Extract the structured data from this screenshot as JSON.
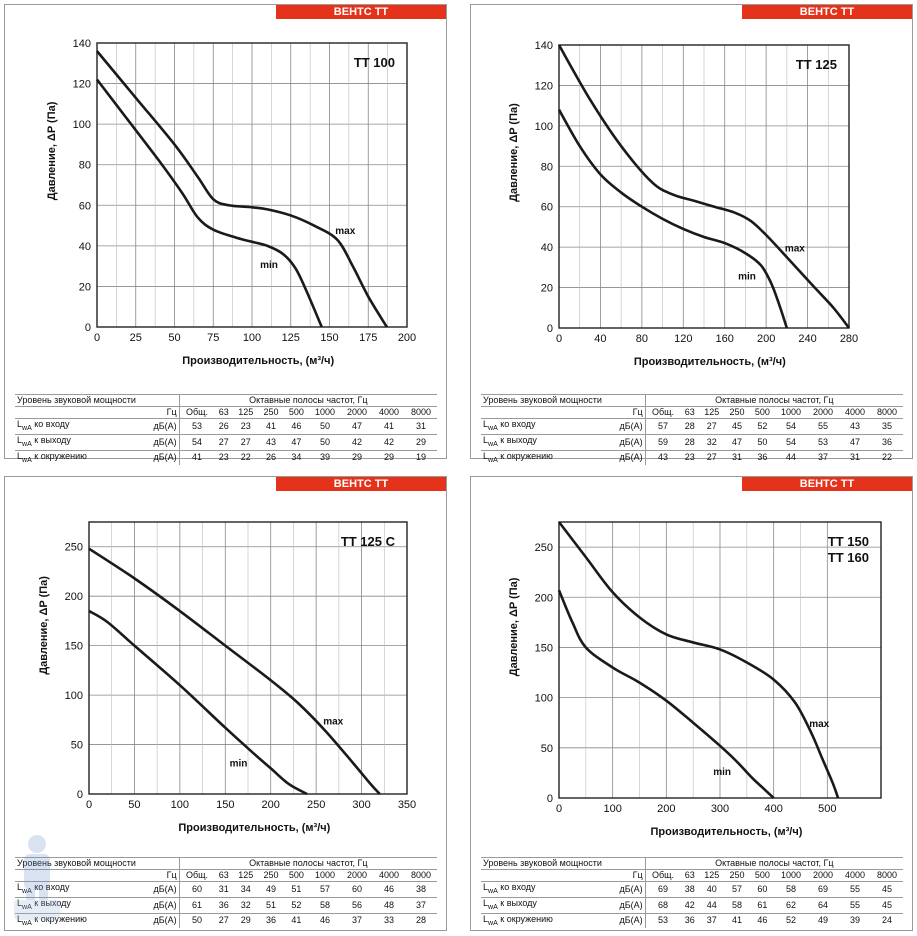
{
  "panels": [
    {
      "brand": "ВЕНТС ТТ",
      "chart_data": {
        "type": "line",
        "title": "ТТ 100",
        "xlabel": "Производительность, (м³/ч)",
        "ylabel": "Давление, ΔP (Па)",
        "xlim": [
          0,
          200
        ],
        "ylim": [
          0,
          140
        ],
        "xticks": [
          0,
          25,
          50,
          75,
          100,
          125,
          150,
          175,
          200
        ],
        "yticks": [
          0,
          20,
          40,
          60,
          80,
          100,
          120,
          140
        ],
        "grid": true,
        "series": [
          {
            "name": "max",
            "x": [
              0,
              25,
              50,
              65,
              75,
              85,
              100,
              110,
              125,
              140,
              155,
              165,
              175,
              187
            ],
            "y": [
              136,
              113,
              90,
              74,
              63,
              60,
              59,
              58,
              55,
              50,
              43,
              30,
              15,
              0
            ]
          },
          {
            "name": "min",
            "x": [
              0,
              20,
              40,
              55,
              65,
              75,
              90,
              100,
              110,
              120,
              128,
              135,
              145
            ],
            "y": [
              122,
              102,
              82,
              66,
              54,
              48,
              44,
              42,
              40,
              36,
              29,
              18,
              0
            ]
          }
        ]
      },
      "table": {
        "header_left": "Уровень звуковой мощности",
        "header_right": "Октавные полосы частот, Гц",
        "unit_header": "Гц",
        "columns": [
          "Общ.",
          "63",
          "125",
          "250",
          "500",
          "1000",
          "2000",
          "4000",
          "8000"
        ],
        "rows": [
          {
            "label": "LwA ко входу",
            "unit": "дБ(А)",
            "values": [
              "53",
              "26",
              "23",
              "41",
              "46",
              "50",
              "47",
              "41",
              "31"
            ]
          },
          {
            "label": "LwA к выходу",
            "unit": "дБ(А)",
            "values": [
              "54",
              "27",
              "27",
              "43",
              "47",
              "50",
              "42",
              "42",
              "29"
            ]
          },
          {
            "label": "LwA к окружению",
            "unit": "дБ(А)",
            "values": [
              "41",
              "23",
              "22",
              "26",
              "34",
              "39",
              "29",
              "29",
              "19"
            ]
          }
        ]
      }
    },
    {
      "brand": "ВЕНТС ТТ",
      "chart_data": {
        "type": "line",
        "title": "ТТ 125",
        "xlabel": "Производительность, (м³/ч)",
        "ylabel": "Давление, ΔP (Па)",
        "xlim": [
          0,
          280
        ],
        "ylim": [
          0,
          140
        ],
        "xticks": [
          0,
          40,
          80,
          120,
          160,
          200,
          240,
          280
        ],
        "yticks": [
          0,
          20,
          40,
          60,
          80,
          100,
          120,
          140
        ],
        "grid": true,
        "series": [
          {
            "name": "max",
            "x": [
              0,
              30,
              60,
              90,
              110,
              130,
              150,
              170,
              185,
              200,
              220,
              245,
              265,
              280
            ],
            "y": [
              140,
              113,
              90,
              72,
              66,
              63,
              60,
              57,
              53,
              46,
              35,
              21,
              10,
              0
            ]
          },
          {
            "name": "min",
            "x": [
              0,
              20,
              40,
              60,
              80,
              100,
              120,
              140,
              160,
              180,
              195,
              205,
              213,
              220
            ],
            "y": [
              108,
              90,
              76,
              67,
              60,
              54,
              49,
              45,
              42,
              37,
              31,
              22,
              11,
              0
            ]
          }
        ]
      },
      "table": {
        "header_left": "Уровень звуковой мощности",
        "header_right": "Октавные полосы частот, Гц",
        "unit_header": "Гц",
        "columns": [
          "Общ.",
          "63",
          "125",
          "250",
          "500",
          "1000",
          "2000",
          "4000",
          "8000"
        ],
        "rows": [
          {
            "label": "LwA ко входу",
            "unit": "дБ(А)",
            "values": [
              "57",
              "28",
              "27",
              "45",
              "52",
              "54",
              "55",
              "43",
              "35"
            ]
          },
          {
            "label": "LwA к выходу",
            "unit": "дБ(А)",
            "values": [
              "59",
              "28",
              "32",
              "47",
              "50",
              "54",
              "53",
              "47",
              "36"
            ]
          },
          {
            "label": "LwA к окружению",
            "unit": "дБ(А)",
            "values": [
              "43",
              "23",
              "27",
              "31",
              "36",
              "44",
              "37",
              "31",
              "22"
            ]
          }
        ]
      }
    },
    {
      "brand": "ВЕНТС ТТ",
      "chart_data": {
        "type": "line",
        "title": "ТТ 125 С",
        "xlabel": "Производительность, (м³/ч)",
        "ylabel": "Давление, ΔP (Па)",
        "xlim": [
          0,
          350
        ],
        "ylim": [
          0,
          275
        ],
        "xticks": [
          0,
          50,
          100,
          150,
          200,
          250,
          300,
          350
        ],
        "yticks": [
          0,
          50,
          100,
          150,
          200,
          250
        ],
        "grid": true,
        "series": [
          {
            "name": "max",
            "x": [
              0,
              50,
              100,
              150,
              200,
              230,
              260,
              290,
              310,
              320
            ],
            "y": [
              248,
              218,
              185,
              150,
              115,
              92,
              64,
              32,
              10,
              0
            ]
          },
          {
            "name": "min",
            "x": [
              0,
              20,
              50,
              100,
              150,
              180,
              200,
              220,
              240
            ],
            "y": [
              185,
              174,
              150,
              110,
              67,
              42,
              26,
              10,
              0
            ]
          }
        ]
      },
      "table": {
        "header_left": "Уровень звуковой мощности",
        "header_right": "Октавные полосы частот, Гц",
        "unit_header": "Гц",
        "columns": [
          "Общ.",
          "63",
          "125",
          "250",
          "500",
          "1000",
          "2000",
          "4000",
          "8000"
        ],
        "rows": [
          {
            "label": "LwA ко входу",
            "unit": "дБ(А)",
            "values": [
              "60",
              "31",
              "34",
              "49",
              "51",
              "57",
              "60",
              "46",
              "38"
            ]
          },
          {
            "label": "LwA к выходу",
            "unit": "дБ(А)",
            "values": [
              "61",
              "36",
              "32",
              "51",
              "52",
              "58",
              "56",
              "48",
              "37"
            ]
          },
          {
            "label": "LwA к окружению",
            "unit": "дБ(А)",
            "values": [
              "50",
              "27",
              "29",
              "36",
              "41",
              "46",
              "37",
              "33",
              "28"
            ]
          }
        ]
      }
    },
    {
      "brand": "ВЕНТС ТТ",
      "chart_data": {
        "type": "line",
        "title": "ТТ 150",
        "title2": "ТТ 160",
        "xlabel": "Производительность, (м³/ч)",
        "ylabel": "Давление, ΔP (Па)",
        "xlim": [
          0,
          600
        ],
        "ylim": [
          0,
          275
        ],
        "xticks": [
          0,
          100,
          200,
          300,
          400,
          500
        ],
        "yticks": [
          0,
          50,
          100,
          150,
          200,
          250
        ],
        "grid": true,
        "series": [
          {
            "name": "max",
            "x": [
              0,
              50,
              100,
              150,
              200,
              250,
              300,
              350,
              400,
              440,
              470,
              490,
              510,
              520
            ],
            "y": [
              275,
              240,
              205,
              180,
              163,
              155,
              148,
              135,
              118,
              95,
              65,
              40,
              15,
              0
            ]
          },
          {
            "name": "min",
            "x": [
              0,
              25,
              50,
              100,
              150,
              200,
              250,
              300,
              330,
              360,
              380,
              400
            ],
            "y": [
              207,
              175,
              150,
              130,
              115,
              97,
              75,
              52,
              37,
              20,
              10,
              0
            ]
          }
        ]
      },
      "table": {
        "header_left": "Уровень звуковой мощности",
        "header_right": "Октавные полосы частот, Гц",
        "unit_header": "Гц",
        "columns": [
          "Общ.",
          "63",
          "125",
          "250",
          "500",
          "1000",
          "2000",
          "4000",
          "8000"
        ],
        "rows": [
          {
            "label": "LwA ко входу",
            "unit": "дБ(А)",
            "values": [
              "69",
              "38",
              "40",
              "57",
              "60",
              "58",
              "69",
              "55",
              "45"
            ]
          },
          {
            "label": "LwA к выходу",
            "unit": "дБ(А)",
            "values": [
              "68",
              "42",
              "44",
              "58",
              "61",
              "62",
              "64",
              "55",
              "45"
            ]
          },
          {
            "label": "LwA к окружению",
            "unit": "дБ(А)",
            "values": [
              "53",
              "36",
              "37",
              "41",
              "46",
              "52",
              "49",
              "39",
              "24"
            ]
          }
        ]
      }
    }
  ]
}
